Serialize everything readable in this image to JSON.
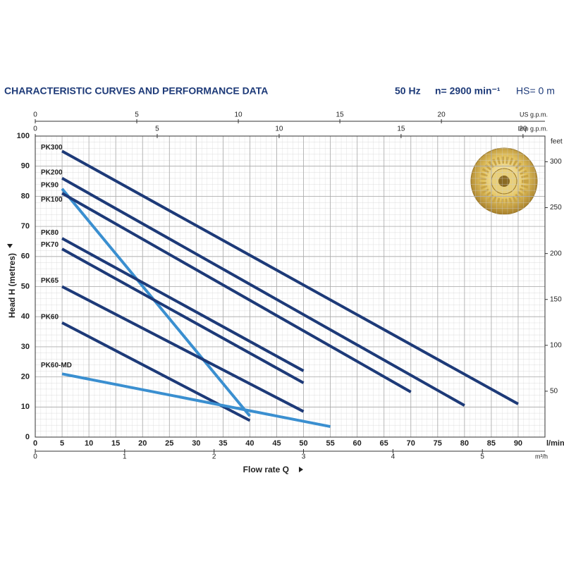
{
  "chart_data": {
    "type": "line",
    "title": "CHARACTERISTIC CURVES AND PERFORMANCE DATA",
    "frequency": "50 Hz",
    "speed": "n= 2900 min⁻¹",
    "suction_head": "HS= 0 m",
    "ylabel": "Head H (metres)",
    "xlabel": "Flow rate Q",
    "xunit": "l/min",
    "xlim": [
      0,
      95
    ],
    "xticks": [
      0,
      5,
      10,
      15,
      20,
      25,
      30,
      35,
      40,
      45,
      50,
      55,
      60,
      65,
      70,
      75,
      80,
      85,
      90
    ],
    "ylim": [
      0,
      100
    ],
    "yticks": [
      0,
      10,
      20,
      30,
      40,
      50,
      60,
      70,
      80,
      90,
      100
    ],
    "grid": true,
    "x2_axis": {
      "label": "US g.p.m.",
      "lim": [
        0,
        25.1
      ],
      "ticks": [
        0,
        5,
        10,
        15,
        20
      ]
    },
    "x3_axis": {
      "label": "Imp g.p.m.",
      "lim": [
        0,
        20.9
      ],
      "ticks": [
        0,
        5,
        10,
        15,
        20
      ]
    },
    "x4_axis": {
      "label": "m³/h",
      "lim": [
        0,
        5.7
      ],
      "ticks": [
        0,
        1,
        2,
        3,
        4,
        5
      ]
    },
    "y2_axis": {
      "label": "feet",
      "lim": [
        0,
        328
      ],
      "ticks": [
        50,
        100,
        150,
        200,
        250,
        300
      ]
    },
    "series": [
      {
        "name": "PK300",
        "color": "#1d3a78",
        "x": [
          5,
          90
        ],
        "values": [
          95,
          11
        ]
      },
      {
        "name": "PK200",
        "color": "#1d3a78",
        "x": [
          5,
          80
        ],
        "values": [
          86,
          10.5
        ]
      },
      {
        "name": "PK90",
        "color": "#3a8fd0",
        "x": [
          5,
          40
        ],
        "values": [
          82.5,
          7
        ]
      },
      {
        "name": "PK100",
        "color": "#1d3a78",
        "x": [
          5,
          70
        ],
        "values": [
          81,
          15
        ]
      },
      {
        "name": "PK80",
        "color": "#1d3a78",
        "x": [
          5,
          50
        ],
        "values": [
          66,
          22
        ]
      },
      {
        "name": "PK70",
        "color": "#1d3a78",
        "x": [
          5,
          50
        ],
        "values": [
          62.5,
          18
        ]
      },
      {
        "name": "PK65",
        "color": "#1d3a78",
        "x": [
          5,
          50
        ],
        "values": [
          50,
          8.5
        ]
      },
      {
        "name": "PK60",
        "color": "#1d3a78",
        "x": [
          5,
          40
        ],
        "values": [
          38,
          5.5
        ]
      },
      {
        "name": "PK60-MD",
        "color": "#3a8fd0",
        "x": [
          5,
          55
        ],
        "values": [
          21,
          3.5
        ]
      }
    ]
  }
}
